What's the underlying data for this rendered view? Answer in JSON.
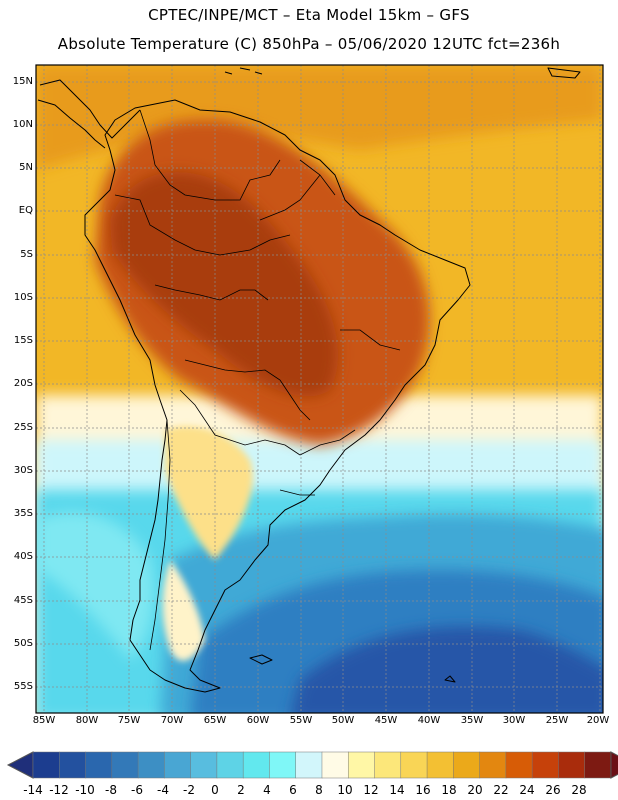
{
  "header": {
    "line1": "CPTEC/INPE/MCT –  Eta Model 15km – GFS",
    "line2": "Absolute Temperature (C) 850hPa – 05/06/2020 12UTC fct=236h"
  },
  "axes": {
    "lat_labels": [
      "15N",
      "10N",
      "5N",
      "EQ",
      "5S",
      "10S",
      "15S",
      "20S",
      "25S",
      "30S",
      "35S",
      "40S",
      "45S",
      "50S",
      "55S"
    ],
    "lon_labels": [
      "85W",
      "80W",
      "75W",
      "70W",
      "65W",
      "60W",
      "55W",
      "50W",
      "45W",
      "40W",
      "35W",
      "30W",
      "25W",
      "20W"
    ]
  },
  "colorbar": {
    "labels": [
      "-14",
      "-12",
      "-10",
      "-8",
      "-6",
      "-4",
      "-2",
      "0",
      "2",
      "4",
      "6",
      "8",
      "10",
      "12",
      "14",
      "16",
      "18",
      "20",
      "22",
      "24",
      "26",
      "28"
    ],
    "colors": [
      "#1c3d8f",
      "#23519f",
      "#2a67ae",
      "#3379b8",
      "#3d8fc4",
      "#49a6d3",
      "#58bddf",
      "#5ed3e6",
      "#62e8ee",
      "#7ff7f7",
      "#d2f6fb",
      "#fffbe6",
      "#fff7a6",
      "#fce77a",
      "#f9d556",
      "#f3c033",
      "#eba91a",
      "#e38710",
      "#d75c06",
      "#c6410a",
      "#a92c0c",
      "#7d1a12"
    ],
    "low_arrow_color": "#1f2f7a",
    "high_arrow_color": "#6b0f16"
  },
  "field_colors": {
    "hot": "#a93d0c",
    "warm": "#c95512",
    "orange": "#e89b1a",
    "ocean_warm": "#f2b726",
    "pale": "#fde089",
    "cream": "#fff6d8",
    "cyan_light": "#cdf6fb",
    "cyan": "#58d8ec",
    "mid_blue": "#3fa9d6",
    "blue": "#2f7fc2",
    "deep_blue": "#2857a8",
    "border": "#000000",
    "grid": "#8c8c8c"
  }
}
